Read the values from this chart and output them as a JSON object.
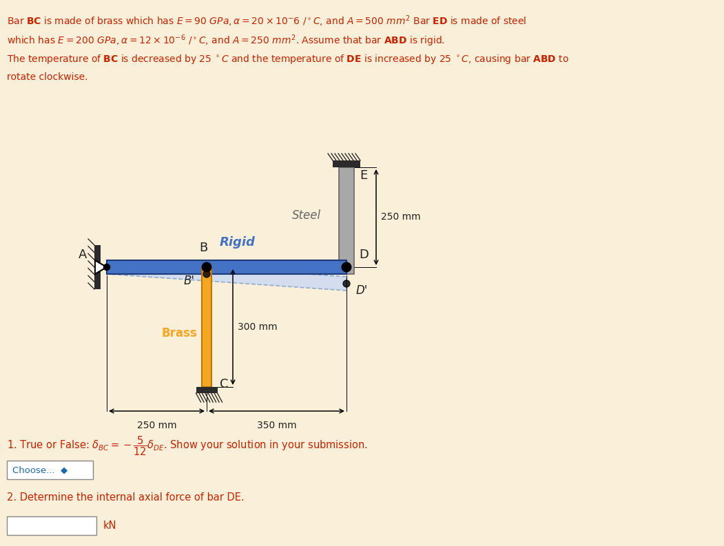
{
  "bg_color": "#faefd8",
  "rigid_bar_color": "#4472c4",
  "brass_bar_color": "#f5a623",
  "steel_bar_color": "#a8a8a8",
  "deformed_color": "#c8d8f5",
  "wall_color": "#2b2b2b",
  "text_color": "#222222",
  "red_text_color": "#cc2200",
  "blue_label_color": "#4472c4",
  "gray_label_color": "#666666",
  "choose_color": "#1a6aab",
  "label_A": "A",
  "label_B": "B",
  "label_C": "C",
  "label_D": "D",
  "label_E": "E",
  "label_Bprime": "B'",
  "label_Dprime": "D'",
  "rigid_label": "Rigid",
  "steel_label": "Steel",
  "brass_label": "Brass",
  "dim_250_left": "250 mm",
  "dim_350": "350 mm",
  "dim_300": "300 mm",
  "dim_250_right": "250 mm",
  "choose_label": "Choose...  ◆",
  "kN_label": "kN",
  "line1": "Bar $\\mathbf{BC}$ is made of brass which has $E = 90 \\ GPa, \\alpha = 20 \\times 10^{-}6 \\ /^\\circ C$, and $A = 500 \\ mm^2$ Bar $\\mathbf{ED}$ is made of steel",
  "line2": "which has $E = 200 \\ GPa, \\alpha = 12 \\times 10^{-6} \\ /^\\circ C$, and $A = 250 \\ mm^2$. Assume that bar $\\mathbf{ABD}$ is rigid.",
  "line3": "The temperature of $\\mathbf{BC}$ is decreased by $25 \\ ^\\circ C$ and the temperature of $\\mathbf{DE}$ is increased by $25 \\ ^\\circ C$, causing bar $\\mathbf{ABD}$ to",
  "line4": "rotate clockwise.",
  "q1": "1. True or False: $\\delta_{BC} = -\\dfrac{5}{12}\\delta_{DE}$. Show your solution in your submission.",
  "q2": "2. Determine the internal axial force of bar DE."
}
